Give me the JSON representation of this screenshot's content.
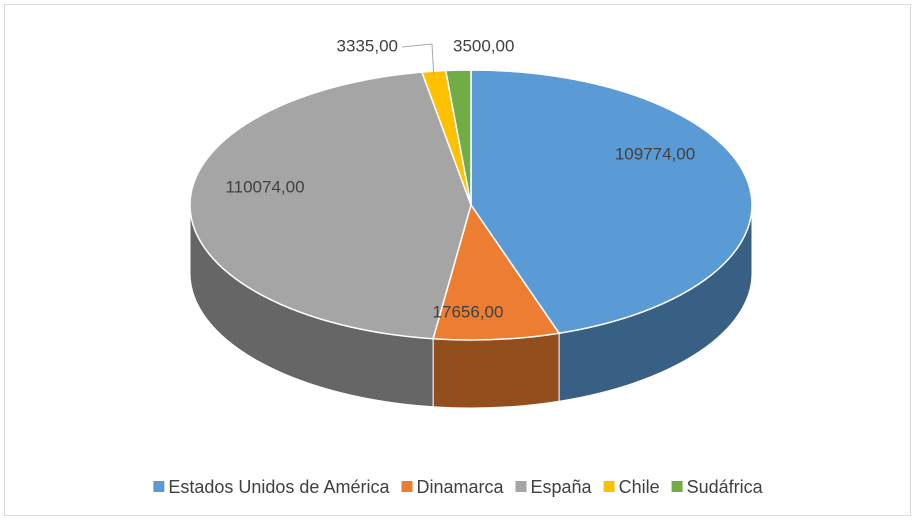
{
  "chart_data": {
    "type": "pie",
    "categories": [
      "Estados Unidos de América",
      "Dinamarca",
      "España",
      "Chile",
      "Sudáfrica"
    ],
    "values": [
      109774,
      17656,
      110074,
      3335,
      3500
    ],
    "value_labels": [
      "109774,00",
      "17656,00",
      "110074,00",
      "3335,00",
      "3500,00"
    ],
    "colors": [
      "#5b9bd5",
      "#ed7d31",
      "#a5a5a5",
      "#ffc000",
      "#70ad47"
    ],
    "legend": "bottom"
  }
}
